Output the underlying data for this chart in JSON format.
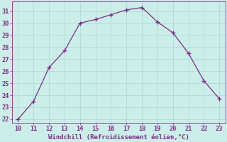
{
  "x": [
    10,
    11,
    12,
    13,
    14,
    15,
    16,
    17,
    18,
    19,
    20,
    21,
    22,
    23
  ],
  "y": [
    22.0,
    23.5,
    26.3,
    27.7,
    30.0,
    30.3,
    30.7,
    31.1,
    31.3,
    30.1,
    29.2,
    27.5,
    25.2,
    23.7
  ],
  "xlim": [
    9.6,
    23.4
  ],
  "ylim": [
    21.7,
    31.8
  ],
  "yticks": [
    22,
    23,
    24,
    25,
    26,
    27,
    28,
    29,
    30,
    31
  ],
  "xticks": [
    10,
    11,
    12,
    13,
    14,
    15,
    16,
    17,
    18,
    19,
    20,
    21,
    22,
    23
  ],
  "xlabel": "Windchill (Refroidissement éolien,°C)",
  "line_color": "#7b2d8b",
  "marker_color": "#7b2d8b",
  "bg_color": "#cceee8",
  "grid_color": "#aaddda",
  "xlabel_color": "#7b2d8b",
  "tick_color": "#7b2d8b",
  "xlabel_fontsize": 6.5,
  "tick_fontsize": 6.2
}
